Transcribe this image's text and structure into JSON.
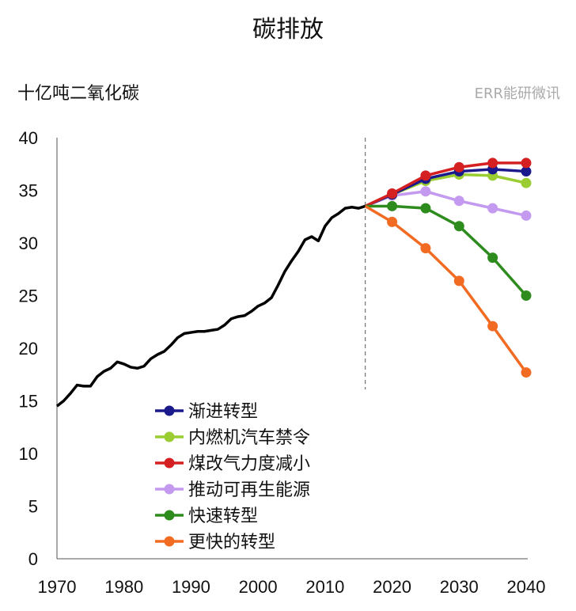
{
  "chart_data": {
    "type": "line",
    "title": "碳排放",
    "ylabel": "十亿吨二氧化碳",
    "xlabel": "",
    "xlim": [
      1970,
      2040
    ],
    "ylim": [
      0,
      40
    ],
    "xticks": [
      1970,
      1980,
      1990,
      2000,
      2010,
      2020,
      2030,
      2040
    ],
    "yticks": [
      0,
      5,
      10,
      15,
      20,
      25,
      30,
      35,
      40
    ],
    "grid": false,
    "legend_position": "bottom-left",
    "projection_start_marker": 2016,
    "history": {
      "color": "#000000",
      "x": [
        1970,
        1971,
        1972,
        1973,
        1974,
        1975,
        1976,
        1977,
        1978,
        1979,
        1980,
        1981,
        1982,
        1983,
        1984,
        1985,
        1986,
        1987,
        1988,
        1989,
        1990,
        1991,
        1992,
        1993,
        1994,
        1995,
        1996,
        1997,
        1998,
        1999,
        2000,
        2001,
        2002,
        2003,
        2004,
        2005,
        2006,
        2007,
        2008,
        2009,
        2010,
        2011,
        2012,
        2013,
        2014,
        2015,
        2016
      ],
      "y": [
        14.5,
        15.0,
        15.7,
        16.5,
        16.4,
        16.4,
        17.3,
        17.8,
        18.1,
        18.7,
        18.5,
        18.2,
        18.1,
        18.3,
        19.0,
        19.4,
        19.7,
        20.3,
        21.0,
        21.4,
        21.5,
        21.6,
        21.6,
        21.7,
        21.8,
        22.2,
        22.8,
        23.0,
        23.1,
        23.5,
        24.0,
        24.3,
        24.8,
        26.0,
        27.3,
        28.3,
        29.2,
        30.3,
        30.6,
        30.2,
        31.6,
        32.4,
        32.8,
        33.3,
        33.4,
        33.3,
        33.5
      ]
    },
    "x": [
      2016,
      2020,
      2025,
      2030,
      2035,
      2040
    ],
    "series": [
      {
        "name": "渐进转型",
        "color": "#1a1a8c",
        "values": [
          33.5,
          34.6,
          36.1,
          36.8,
          37.0,
          36.8
        ]
      },
      {
        "name": "内燃机汽车禁令",
        "color": "#9acd32",
        "values": [
          33.5,
          34.6,
          35.9,
          36.5,
          36.4,
          35.7
        ]
      },
      {
        "name": "煤改气力度减小",
        "color": "#d42020",
        "values": [
          33.5,
          34.7,
          36.4,
          37.2,
          37.6,
          37.6
        ]
      },
      {
        "name": "推动可再生能源",
        "color": "#c39af0",
        "values": [
          33.5,
          34.5,
          34.9,
          34.0,
          33.3,
          32.6
        ]
      },
      {
        "name": "快速转型",
        "color": "#2e8b1e",
        "values": [
          33.5,
          33.5,
          33.3,
          31.6,
          28.6,
          25.0
        ]
      },
      {
        "name": "更快的转型",
        "color": "#f26b22",
        "values": [
          33.5,
          32.0,
          29.5,
          26.4,
          22.1,
          17.7
        ]
      }
    ]
  },
  "watermark": "ERR能研微讯"
}
